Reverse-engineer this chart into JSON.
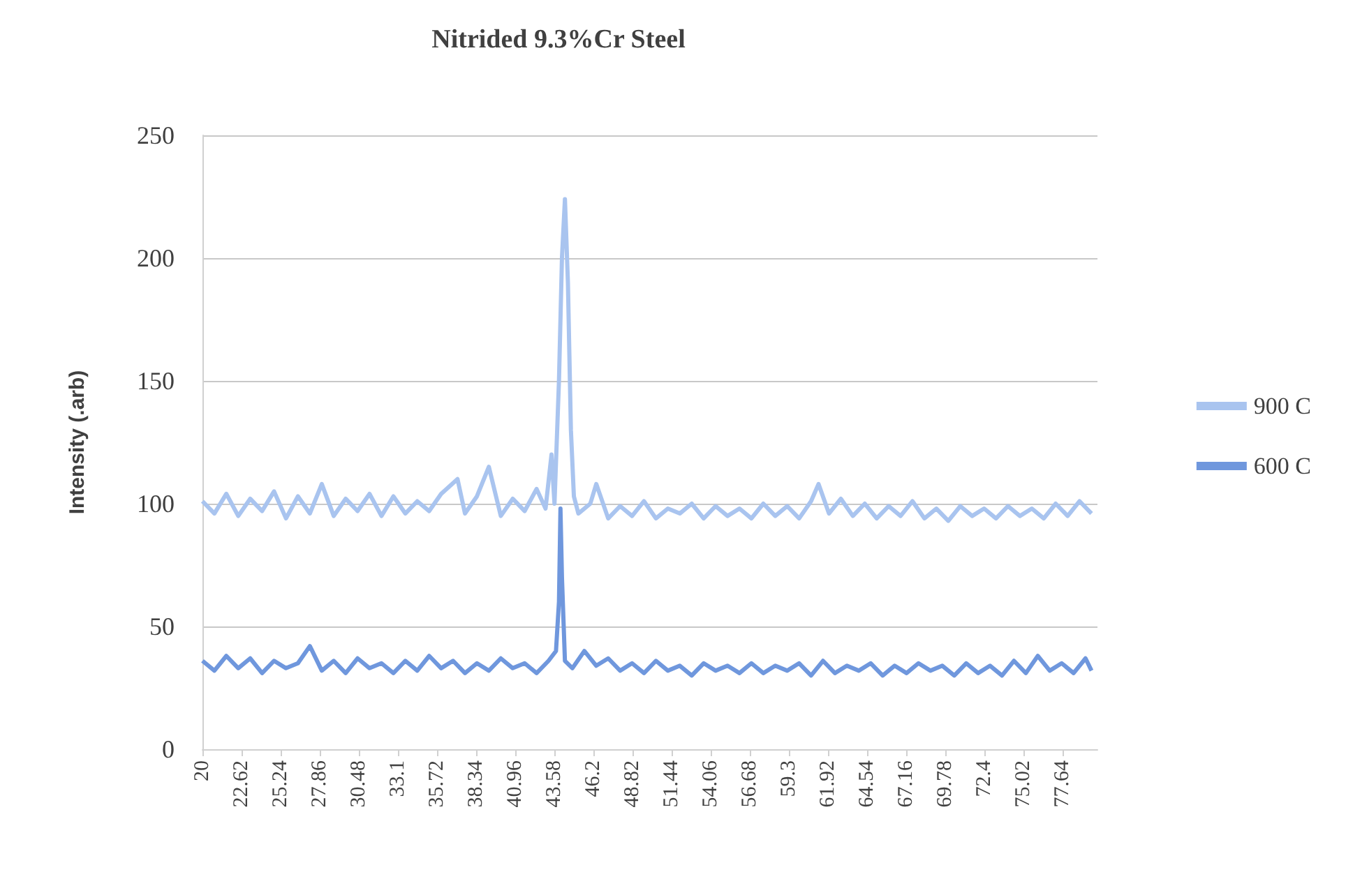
{
  "chart_data": {
    "type": "line",
    "title": "Nitrided 9.3%Cr Steel",
    "ylabel": "Intensity (.arb)",
    "xlim": [
      20,
      80
    ],
    "xticks": [
      20,
      22.62,
      25.24,
      27.86,
      30.48,
      33.1,
      35.72,
      38.34,
      40.96,
      43.58,
      46.2,
      48.82,
      51.44,
      54.06,
      56.68,
      59.3,
      61.92,
      64.54,
      67.16,
      69.78,
      72.4,
      75.02,
      77.64
    ],
    "ylim": [
      0,
      250
    ],
    "yticks": [
      0,
      50,
      100,
      150,
      200,
      250
    ],
    "grid": "y",
    "legend": "right",
    "series": [
      {
        "name": "900 C",
        "color": "#a9c4ef",
        "x": [
          20,
          20.8,
          21.6,
          22.4,
          23.2,
          24,
          24.8,
          25.6,
          26.4,
          27.2,
          28,
          28.8,
          29.6,
          30.4,
          31.2,
          32,
          32.8,
          33.6,
          34.4,
          35.2,
          36,
          37.1,
          37.6,
          38.4,
          39.2,
          40,
          40.8,
          41.6,
          42.4,
          43,
          43.4,
          43.6,
          43.9,
          44.1,
          44.3,
          44.5,
          44.7,
          44.9,
          45.2,
          46,
          46.4,
          47.2,
          48,
          48.8,
          49.6,
          50.4,
          51.2,
          52,
          52.8,
          53.6,
          54.4,
          55.2,
          56,
          56.8,
          57.6,
          58.4,
          59.2,
          60,
          60.8,
          61.3,
          62,
          62.8,
          63.6,
          64.4,
          65.2,
          66,
          66.8,
          67.6,
          68.4,
          69.2,
          70,
          70.8,
          71.6,
          72.4,
          73.2,
          74,
          74.8,
          75.6,
          76.4,
          77.2,
          78,
          78.8,
          79.6
        ],
        "values": [
          101,
          96,
          104,
          95,
          102,
          97,
          105,
          94,
          103,
          96,
          108,
          95,
          102,
          97,
          104,
          95,
          103,
          96,
          101,
          97,
          104,
          110,
          96,
          103,
          115,
          95,
          102,
          97,
          106,
          98,
          120,
          100,
          150,
          200,
          224,
          190,
          130,
          103,
          96,
          100,
          108,
          94,
          99,
          95,
          101,
          94,
          98,
          96,
          100,
          94,
          99,
          95,
          98,
          94,
          100,
          95,
          99,
          94,
          101,
          108,
          96,
          102,
          95,
          100,
          94,
          99,
          95,
          101,
          94,
          98,
          93,
          99,
          95,
          98,
          94,
          99,
          95,
          98,
          94,
          100,
          95,
          101,
          96
        ]
      },
      {
        "name": "600 C",
        "color": "#6f97dd",
        "x": [
          20,
          20.8,
          21.6,
          22.4,
          23.2,
          24,
          24.8,
          25.6,
          26.4,
          27.2,
          28,
          28.8,
          29.6,
          30.4,
          31.2,
          32,
          32.8,
          33.6,
          34.4,
          35.2,
          36,
          36.8,
          37.6,
          38.4,
          39.2,
          40,
          40.8,
          41.6,
          42.4,
          43.2,
          43.7,
          43.9,
          44,
          44.1,
          44.3,
          44.8,
          45.6,
          46.4,
          47.2,
          48,
          48.8,
          49.6,
          50.4,
          51.2,
          52,
          52.8,
          53.6,
          54.4,
          55.2,
          56,
          56.8,
          57.6,
          58.4,
          59.2,
          60,
          60.8,
          61.6,
          62.4,
          63.2,
          64,
          64.8,
          65.6,
          66.4,
          67.2,
          68,
          68.8,
          69.6,
          70.4,
          71.2,
          72,
          72.8,
          73.6,
          74.4,
          75.2,
          76,
          76.8,
          77.6,
          78.4,
          79.2,
          79.6
        ],
        "values": [
          36,
          32,
          38,
          33,
          37,
          31,
          36,
          33,
          35,
          42,
          32,
          36,
          31,
          37,
          33,
          35,
          31,
          36,
          32,
          38,
          33,
          36,
          31,
          35,
          32,
          37,
          33,
          35,
          31,
          36,
          40,
          60,
          98,
          70,
          36,
          33,
          40,
          34,
          37,
          32,
          35,
          31,
          36,
          32,
          34,
          30,
          35,
          32,
          34,
          31,
          35,
          31,
          34,
          32,
          35,
          30,
          36,
          31,
          34,
          32,
          35,
          30,
          34,
          31,
          35,
          32,
          34,
          30,
          35,
          31,
          34,
          30,
          36,
          31,
          38,
          32,
          35,
          31,
          37,
          32
        ]
      }
    ]
  }
}
